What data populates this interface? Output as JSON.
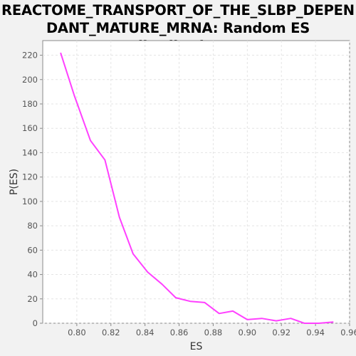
{
  "chart_data": {
    "type": "line",
    "title": "REACTOME_TRANSPORT_OF_THE_SLBP_DEPEN\nDANT_MATURE_MRNA: Random ES distribution",
    "xlabel": "ES",
    "ylabel": "P(ES)",
    "xlim": [
      0.78,
      0.96
    ],
    "ylim": [
      0,
      232
    ],
    "x_ticks": [
      0.8,
      0.82,
      0.84,
      0.86,
      0.88,
      0.9,
      0.92,
      0.94,
      0.96
    ],
    "x_tick_labels": [
      "0.80",
      "0.82",
      "0.84",
      "0.86",
      "0.88",
      "0.90",
      "0.92",
      "0.94",
      "0.96"
    ],
    "y_ticks": [
      0,
      20,
      40,
      60,
      80,
      100,
      120,
      140,
      160,
      180,
      200,
      220
    ],
    "y_tick_labels": [
      "0",
      "20",
      "40",
      "60",
      "80",
      "100",
      "120",
      "140",
      "160",
      "180",
      "200",
      "220"
    ],
    "grid": true,
    "series": [
      {
        "color": "#ff40ff",
        "x": [
          0.7905,
          0.7985,
          0.808,
          0.8165,
          0.825,
          0.833,
          0.8415,
          0.85,
          0.858,
          0.8665,
          0.875,
          0.8835,
          0.8915,
          0.9,
          0.9085,
          0.917,
          0.9255,
          0.9335,
          0.942,
          0.9505
        ],
        "y": [
          222,
          187,
          150,
          134,
          87,
          57,
          42,
          32,
          21,
          18,
          17,
          8,
          10,
          3,
          4,
          2,
          4,
          0,
          0,
          1
        ]
      }
    ]
  }
}
